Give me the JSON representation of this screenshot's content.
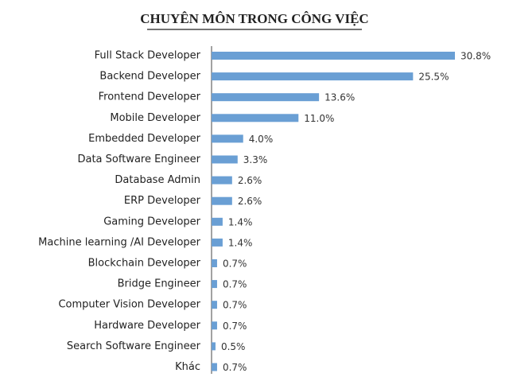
{
  "chart_data": {
    "type": "bar",
    "orientation": "horizontal",
    "title": "CHUYÊN MÔN TRONG CÔNG VIỆC",
    "categories": [
      "Full Stack Developer",
      "Backend Developer",
      "Frontend Developer",
      "Mobile Developer",
      "Embedded Developer",
      "Data Software Engineer",
      "Database Admin",
      "ERP Developer",
      "Gaming Developer",
      "Machine learning /AI Developer",
      "Blockchain Developer",
      "Bridge Engineer",
      "Computer Vision Developer",
      "Hardware Developer",
      "Search Software Engineer",
      "Khác"
    ],
    "values": [
      30.8,
      25.5,
      13.6,
      11.0,
      4.0,
      3.3,
      2.6,
      2.6,
      1.4,
      1.4,
      0.7,
      0.7,
      0.7,
      0.7,
      0.5,
      0.7
    ],
    "value_labels": [
      "30.8%",
      "25.5%",
      "13.6%",
      "11.0%",
      "4.0%",
      "3.3%",
      "2.6%",
      "2.6%",
      "1.4%",
      "1.4%",
      "0.7%",
      "0.7%",
      "0.7%",
      "0.7%",
      "0.5%",
      "0.7%"
    ],
    "color": "#6a9fd4"
  }
}
